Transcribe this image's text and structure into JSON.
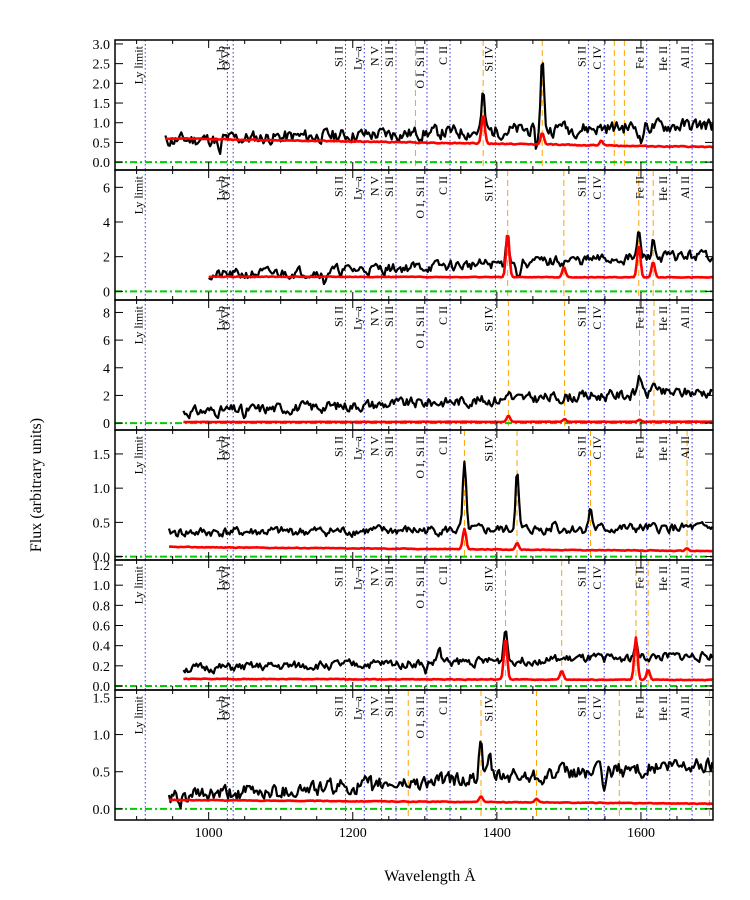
{
  "chart_data": {
    "type": "line",
    "xlabel": "Wavelength Å",
    "ylabel": "Flux (arbitrary units)",
    "xlim": [
      870,
      1700
    ],
    "x_ticks": [
      1000,
      1200,
      1400,
      1600
    ],
    "line_markers": [
      {
        "label": "Ly limit",
        "x": 912,
        "style": "dotted"
      },
      {
        "label": "Ly–b",
        "x": 1026,
        "style": "dotted"
      },
      {
        "label": "O VI",
        "x": 1034,
        "style": "dotted"
      },
      {
        "label": "Si II",
        "x": 1190,
        "style": "dotted"
      },
      {
        "label": "Ly–a",
        "x": 1216,
        "style": "dotted"
      },
      {
        "label": "N V",
        "x": 1240,
        "style": "dotted"
      },
      {
        "label": "Si II",
        "x": 1260,
        "style": "dotted"
      },
      {
        "label": "O I, Si II",
        "x": 1303,
        "style": "dotted"
      },
      {
        "label": "C II",
        "x": 1335,
        "style": "dotted"
      },
      {
        "label": "Si IV",
        "x": 1398,
        "style": "dotted"
      },
      {
        "label": "Si II",
        "x": 1527,
        "style": "dotted"
      },
      {
        "label": "C IV",
        "x": 1549,
        "style": "dotted"
      },
      {
        "label": "Fe II",
        "x": 1608,
        "style": "dotted"
      },
      {
        "label": "He II",
        "x": 1640,
        "style": "dotted"
      },
      {
        "label": "Al II",
        "x": 1671,
        "style": "dotted"
      }
    ],
    "panels": [
      {
        "ylim": [
          -0.2,
          3.1
        ],
        "yticks": [
          0.0,
          0.5,
          1.0,
          1.5,
          2.0,
          2.5,
          3.0
        ],
        "dashed": [
          1287,
          1381,
          1463,
          1563,
          1577
        ],
        "series": [
          {
            "x_start": 940,
            "x_end": 1700,
            "base_start": 0.55,
            "base_end": 0.95,
            "noise": 0.2,
            "seed": 11,
            "peaks": [
              [
                1381,
                0.9
              ],
              [
                1463,
                1.8
              ],
              [
                1490,
                0.2
              ]
            ],
            "dips": [
              [
                1015,
                0.45
              ],
              [
                1455,
                0.5
              ],
              [
                1600,
                0.4
              ]
            ]
          },
          {
            "x_start": 940,
            "x_end": 1700,
            "base_start": 0.6,
            "base_end": 0.38,
            "noise": 0.015,
            "seed": 12,
            "peaks": [
              [
                1381,
                0.75
              ],
              [
                1463,
                0.3
              ],
              [
                1545,
                0.12
              ]
            ],
            "dips": []
          }
        ]
      },
      {
        "ylim": [
          -0.5,
          7.0
        ],
        "yticks": [
          0,
          2,
          4,
          6
        ],
        "dashed": [
          1415,
          1493,
          1597,
          1617
        ],
        "series": [
          {
            "x_start": 1000,
            "x_end": 1700,
            "base_start": 0.9,
            "base_end": 2.1,
            "noise": 0.35,
            "seed": 21,
            "peaks": [
              [
                1415,
                1.8
              ],
              [
                1597,
                1.4
              ],
              [
                1617,
                1.0
              ]
            ],
            "dips": [
              [
                1160,
                0.7
              ],
              [
                1430,
                0.9
              ]
            ]
          },
          {
            "x_start": 1000,
            "x_end": 1700,
            "base_start": 0.85,
            "base_end": 0.8,
            "noise": 0.02,
            "seed": 22,
            "peaks": [
              [
                1415,
                2.6
              ],
              [
                1493,
                0.6
              ],
              [
                1597,
                1.9
              ],
              [
                1617,
                0.9
              ]
            ],
            "dips": []
          }
        ]
      },
      {
        "ylim": [
          -0.5,
          8.9
        ],
        "yticks": [
          0,
          2,
          4,
          6,
          8
        ],
        "dashed": [
          1416,
          1494,
          1598,
          1618
        ],
        "series": [
          {
            "x_start": 965,
            "x_end": 1700,
            "base_start": 0.8,
            "base_end": 2.3,
            "noise": 0.45,
            "seed": 31,
            "peaks": [
              [
                1598,
                1.6
              ],
              [
                1618,
                1.0
              ],
              [
                1416,
                0.7
              ]
            ],
            "dips": [
              [
                1050,
                0.6
              ]
            ]
          },
          {
            "x_start": 965,
            "x_end": 1700,
            "base_start": 0.08,
            "base_end": 0.1,
            "noise": 0.01,
            "seed": 32,
            "peaks": [
              [
                1416,
                0.45
              ],
              [
                1494,
                0.2
              ],
              [
                1598,
                0.15
              ]
            ],
            "dips": []
          }
        ]
      },
      {
        "ylim": [
          -0.05,
          1.85
        ],
        "yticks": [
          0.0,
          0.5,
          1.0,
          1.5
        ],
        "dashed": [
          1355,
          1428,
          1530,
          1664
        ],
        "series": [
          {
            "x_start": 945,
            "x_end": 1700,
            "base_start": 0.35,
            "base_end": 0.42,
            "noise": 0.08,
            "seed": 41,
            "peaks": [
              [
                1355,
                0.95
              ],
              [
                1428,
                0.85
              ],
              [
                1530,
                0.3
              ],
              [
                1480,
                0.15
              ]
            ],
            "dips": []
          },
          {
            "x_start": 945,
            "x_end": 1700,
            "base_start": 0.14,
            "base_end": 0.08,
            "noise": 0.006,
            "seed": 42,
            "peaks": [
              [
                1355,
                0.3
              ],
              [
                1428,
                0.1
              ],
              [
                1664,
                0.04
              ]
            ],
            "dips": []
          }
        ]
      },
      {
        "ylim": [
          -0.04,
          1.25
        ],
        "yticks": [
          0.0,
          0.2,
          0.4,
          0.6,
          0.8,
          1.0,
          1.2
        ],
        "dashed": [
          1412,
          1490,
          1593,
          1610
        ],
        "series": [
          {
            "x_start": 965,
            "x_end": 1700,
            "base_start": 0.17,
            "base_end": 0.3,
            "noise": 0.05,
            "seed": 51,
            "peaks": [
              [
                1412,
                0.35
              ],
              [
                1320,
                0.15
              ],
              [
                1593,
                0.15
              ]
            ],
            "dips": [
              [
                1300,
                0.1
              ]
            ]
          },
          {
            "x_start": 965,
            "x_end": 1700,
            "base_start": 0.07,
            "base_end": 0.06,
            "noise": 0.004,
            "seed": 52,
            "peaks": [
              [
                1412,
                0.42
              ],
              [
                1490,
                0.09
              ],
              [
                1593,
                0.42
              ],
              [
                1610,
                0.1
              ]
            ],
            "dips": []
          }
        ]
      },
      {
        "ylim": [
          -0.15,
          1.6
        ],
        "yticks": [
          0.0,
          0.5,
          1.0,
          1.5
        ],
        "dashed": [
          1277,
          1378,
          1455,
          1570,
          1695
        ],
        "series": [
          {
            "x_start": 945,
            "x_end": 1700,
            "base_start": 0.15,
            "base_end": 0.6,
            "noise": 0.12,
            "seed": 61,
            "peaks": [
              [
                1378,
                0.55
              ],
              [
                1390,
                0.25
              ]
            ],
            "dips": [
              [
                960,
                0.2
              ],
              [
                1550,
                0.3
              ],
              [
                1230,
                0.1
              ]
            ]
          },
          {
            "x_start": 945,
            "x_end": 1700,
            "base_start": 0.12,
            "base_end": 0.07,
            "noise": 0.005,
            "seed": 62,
            "peaks": [
              [
                1378,
                0.08
              ],
              [
                1455,
                0.05
              ]
            ],
            "dips": []
          }
        ]
      }
    ],
    "colors": {
      "observed": "#000000",
      "model": "#ff0000",
      "zero_line": "#00cc00",
      "marker_dotted": "#3333cc",
      "marker_dashed": "#ffa500"
    }
  }
}
